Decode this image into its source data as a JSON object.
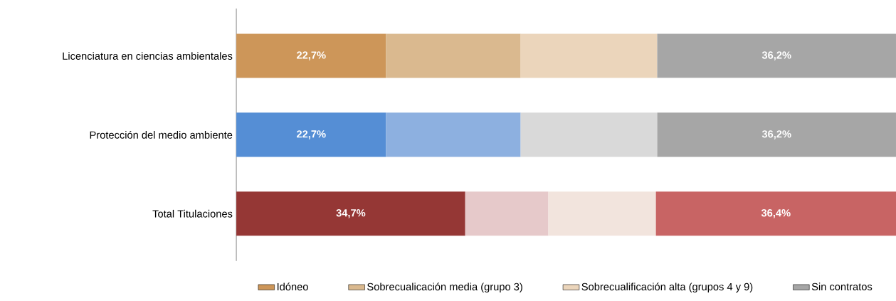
{
  "chart_data": {
    "type": "bar",
    "orientation": "horizontal",
    "stacked": true,
    "legend": "bottom",
    "categories": [
      "Licenciatura en ciencias ambientales",
      "Protección del medio ambiente",
      "Total Titulaciones"
    ],
    "series": [
      {
        "name": "Idóneo",
        "colors": [
          "#cd9659",
          "#558ed5",
          "#953735"
        ],
        "values": [
          22.7,
          22.7,
          34.7
        ],
        "value_labels": [
          "22,7%",
          "22,7%",
          "34,7%"
        ]
      },
      {
        "name": "Sobrecualicación media (grupo 3)",
        "colors": [
          "#dab98f",
          "#8db0e0",
          "#e6c9ca"
        ],
        "values": [
          20.4,
          20.4,
          12.6
        ],
        "value_labels": [
          null,
          null,
          null
        ]
      },
      {
        "name": "Sobrecualificación alta (grupos 4 y 9)",
        "colors": [
          "#ebd5bb",
          "#d9d9d9",
          "#f2e4dd"
        ],
        "values": [
          20.7,
          20.7,
          16.3
        ],
        "value_labels": [
          null,
          null,
          null
        ]
      },
      {
        "name": "Sin contratos",
        "colors": [
          "#a6a6a6",
          "#a6a6a6",
          "#c86464"
        ],
        "values": [
          36.2,
          36.2,
          36.4
        ],
        "value_labels": [
          "36,2%",
          "36,2%",
          "36,4%"
        ]
      }
    ]
  }
}
